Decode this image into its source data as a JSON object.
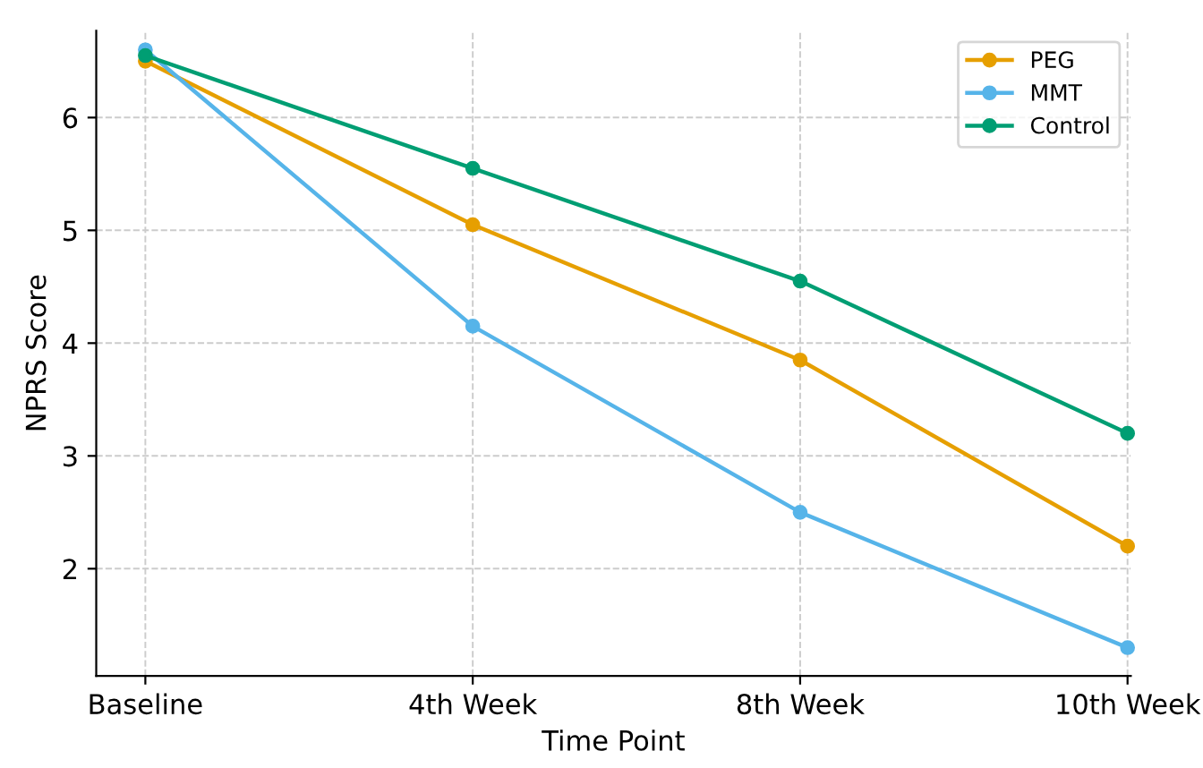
{
  "chart_data": {
    "type": "line",
    "xlabel": "Time Point",
    "ylabel": "NPRS Score",
    "categories": [
      "Baseline",
      "4th Week",
      "8th Week",
      "10th Week"
    ],
    "series": [
      {
        "name": "PEG",
        "color": "#e69f00",
        "values": [
          6.5,
          5.05,
          3.85,
          2.2
        ]
      },
      {
        "name": "MMT",
        "color": "#56b4e9",
        "values": [
          6.6,
          4.15,
          2.5,
          1.3
        ]
      },
      {
        "name": "Control",
        "color": "#009e73",
        "values": [
          6.55,
          5.55,
          4.55,
          3.2
        ]
      }
    ],
    "ylim": [
      1.05,
      6.77
    ],
    "yticks": [
      2,
      3,
      4,
      5,
      6
    ],
    "grid": true,
    "legend": "top right",
    "marker": "circle",
    "line_style": "solid"
  }
}
